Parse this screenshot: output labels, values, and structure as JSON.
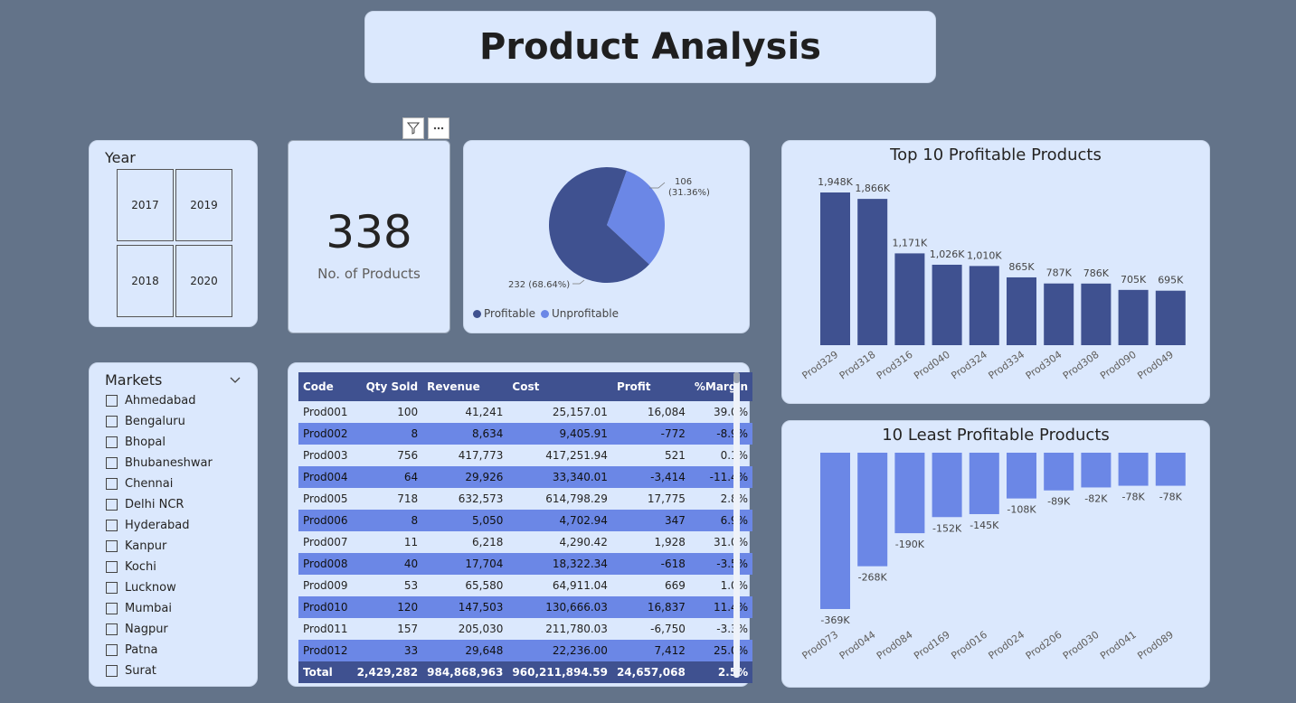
{
  "page": {
    "title": "Product Analysis"
  },
  "year_slicer": {
    "title": "Year",
    "years": [
      "2017",
      "2019",
      "2018",
      "2020"
    ]
  },
  "visual_header": {
    "filter_icon": "filter-icon",
    "more_icon": "more-options-icon"
  },
  "kpi": {
    "value": "338",
    "label": "No. of Products"
  },
  "pie": {
    "legend": [
      "Profitable",
      "Unprofitable"
    ],
    "colors": {
      "Profitable": "#3f5190",
      "Unprofitable": "#6b87e6"
    },
    "labels": {
      "unprofitable_value": "106",
      "unprofitable_pct": "(31.36%)",
      "profitable": "232 (68.64%)"
    }
  },
  "markets_slicer": {
    "title": "Markets",
    "chevron_icon": "chevron-down-icon",
    "items": [
      "Ahmedabad",
      "Bengaluru",
      "Bhopal",
      "Bhubaneshwar",
      "Chennai",
      "Delhi NCR",
      "Hyderabad",
      "Kanpur",
      "Kochi",
      "Lucknow",
      "Mumbai",
      "Nagpur",
      "Patna",
      "Surat"
    ]
  },
  "table": {
    "columns": [
      "Code",
      "Qty Sold",
      "Revenue",
      "Cost",
      "Profit",
      "%Margin"
    ],
    "rows": [
      [
        "Prod001",
        "100",
        "41,241",
        "25,157.01",
        "16,084",
        "39.0%"
      ],
      [
        "Prod002",
        "8",
        "8,634",
        "9,405.91",
        "-772",
        "-8.9%"
      ],
      [
        "Prod003",
        "756",
        "417,773",
        "417,251.94",
        "521",
        "0.1%"
      ],
      [
        "Prod004",
        "64",
        "29,926",
        "33,340.01",
        "-3,414",
        "-11.4%"
      ],
      [
        "Prod005",
        "718",
        "632,573",
        "614,798.29",
        "17,775",
        "2.8%"
      ],
      [
        "Prod006",
        "8",
        "5,050",
        "4,702.94",
        "347",
        "6.9%"
      ],
      [
        "Prod007",
        "11",
        "6,218",
        "4,290.42",
        "1,928",
        "31.0%"
      ],
      [
        "Prod008",
        "40",
        "17,704",
        "18,322.34",
        "-618",
        "-3.5%"
      ],
      [
        "Prod009",
        "53",
        "65,580",
        "64,911.04",
        "669",
        "1.0%"
      ],
      [
        "Prod010",
        "120",
        "147,503",
        "130,666.03",
        "16,837",
        "11.4%"
      ],
      [
        "Prod011",
        "157",
        "205,030",
        "211,780.03",
        "-6,750",
        "-3.3%"
      ],
      [
        "Prod012",
        "33",
        "29,648",
        "22,236.00",
        "7,412",
        "25.0%"
      ]
    ],
    "total": [
      "Total",
      "2,429,282",
      "984,868,963",
      "960,211,894.59",
      "24,657,068",
      "2.5%"
    ]
  },
  "chart_data": [
    {
      "type": "pie",
      "categories": [
        "Profitable",
        "Unprofitable"
      ],
      "values": [
        232,
        106
      ],
      "percents": [
        68.64,
        31.36
      ],
      "colors": [
        "#3f5190",
        "#6b87e6"
      ],
      "legend": "bottom-left"
    },
    {
      "type": "bar",
      "title": "Top 10 Profitable Products",
      "categories": [
        "Prod329",
        "Prod318",
        "Prod316",
        "Prod040",
        "Prod324",
        "Prod334",
        "Prod304",
        "Prod308",
        "Prod090",
        "Prod049"
      ],
      "values": [
        1948,
        1866,
        1171,
        1026,
        1010,
        865,
        787,
        786,
        705,
        695
      ],
      "data_labels": [
        "1,948K",
        "1,866K",
        "1,171K",
        "1,026K",
        "1,010K",
        "865K",
        "787K",
        "786K",
        "705K",
        "695K"
      ],
      "color": "#3f5190"
    },
    {
      "type": "bar",
      "title": "10 Least Profitable Products",
      "categories": [
        "Prod073",
        "Prod044",
        "Prod084",
        "Prod169",
        "Prod016",
        "Prod024",
        "Prod206",
        "Prod030",
        "Prod041",
        "Prod089"
      ],
      "values": [
        -369,
        -268,
        -190,
        -152,
        -145,
        -108,
        -89,
        -82,
        -78,
        -78
      ],
      "data_labels": [
        "-369K",
        "-268K",
        "-190K",
        "-152K",
        "-145K",
        "-108K",
        "-89K",
        "-82K",
        "-78K",
        "-78K"
      ],
      "color": "#6b87e6"
    }
  ]
}
